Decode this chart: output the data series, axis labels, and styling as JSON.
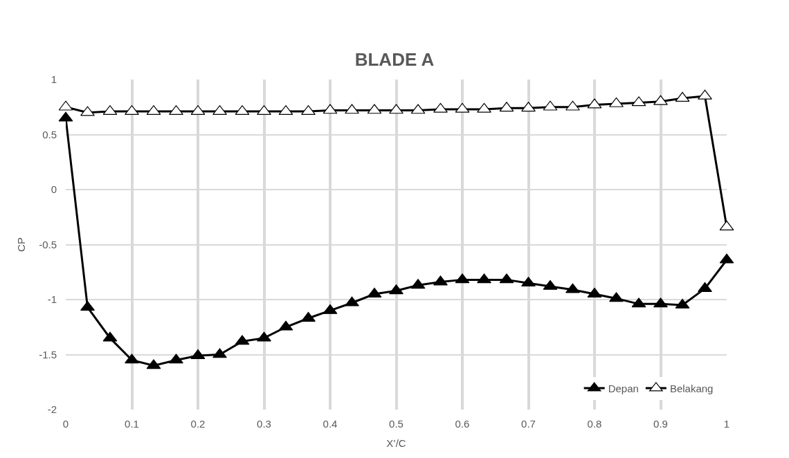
{
  "chart_data": {
    "type": "line",
    "title": "BLADE A",
    "xlabel": "X’/C",
    "ylabel": "CP",
    "x": [
      0,
      0.033,
      0.067,
      0.1,
      0.133,
      0.167,
      0.2,
      0.233,
      0.267,
      0.3,
      0.333,
      0.367,
      0.4,
      0.433,
      0.467,
      0.5,
      0.533,
      0.567,
      0.6,
      0.633,
      0.667,
      0.7,
      0.733,
      0.767,
      0.8,
      0.833,
      0.867,
      0.9,
      0.933,
      0.967,
      1
    ],
    "series": [
      {
        "name": "Depan",
        "color": "#000000",
        "values": [
          0.65,
          -1.07,
          -1.35,
          -1.55,
          -1.6,
          -1.55,
          -1.51,
          -1.5,
          -1.38,
          -1.35,
          -1.25,
          -1.17,
          -1.1,
          -1.03,
          -0.95,
          -0.92,
          -0.87,
          -0.84,
          -0.82,
          -0.82,
          -0.82,
          -0.85,
          -0.88,
          -0.91,
          -0.95,
          -0.99,
          -1.04,
          -1.04,
          -1.05,
          -0.9,
          -0.64
        ]
      },
      {
        "name": "Belakang",
        "color": "#000000",
        "values": [
          0.75,
          0.7,
          0.71,
          0.71,
          0.71,
          0.71,
          0.71,
          0.71,
          0.71,
          0.71,
          0.71,
          0.71,
          0.72,
          0.72,
          0.72,
          0.72,
          0.72,
          0.73,
          0.73,
          0.73,
          0.74,
          0.74,
          0.75,
          0.75,
          0.77,
          0.78,
          0.79,
          0.8,
          0.83,
          0.85,
          -0.34
        ]
      }
    ],
    "xlim": [
      0,
      1
    ],
    "xticks": [
      0,
      0.1,
      0.2,
      0.3,
      0.4,
      0.5,
      0.6,
      0.7,
      0.8,
      0.9,
      1
    ],
    "ylim": [
      -2,
      1
    ],
    "yticks": [
      -2,
      -1.5,
      -1,
      -0.5,
      0,
      0.5,
      1
    ],
    "grid": true,
    "legend": "bottom right",
    "marker": "triangle",
    "line_style": "solid"
  }
}
